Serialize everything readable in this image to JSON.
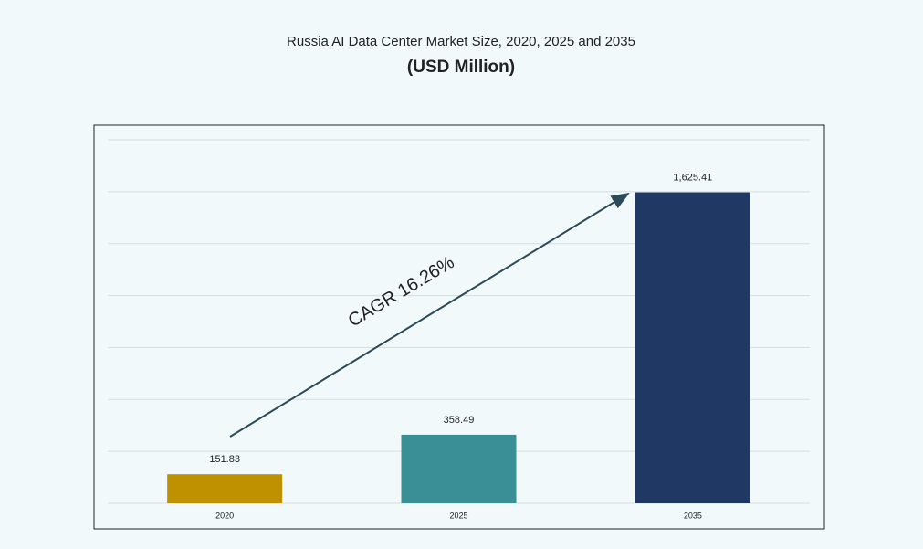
{
  "chart_data": {
    "type": "bar",
    "title": "Russia AI Data Center Market Size, 2020, 2025 and 2035",
    "subtitle": "(USD Million)",
    "annotation": "CAGR 16.26%",
    "categories": [
      "2020",
      "2025",
      "2035"
    ],
    "values": [
      151.83,
      358.49,
      1625.41
    ],
    "value_labels": [
      "151.83",
      "358.49",
      "1,625.41"
    ],
    "colors": [
      "#bf9000",
      "#3a8f96",
      "#1f3864"
    ],
    "ylim": [
      0,
      1900
    ],
    "grid": true
  }
}
